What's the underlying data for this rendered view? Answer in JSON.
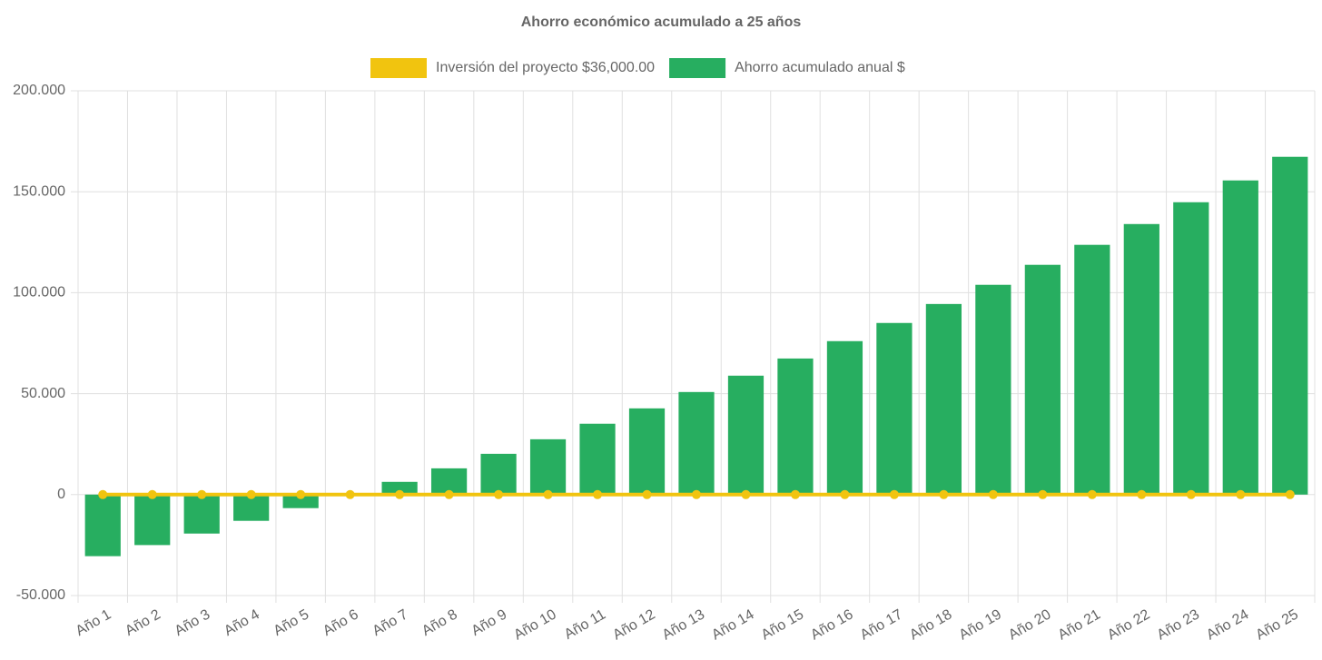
{
  "chart_data": {
    "type": "bar-line",
    "title": "Ahorro económico acumulado a 25 años",
    "categories": [
      "Año 1",
      "Año 2",
      "Año 3",
      "Año 4",
      "Año 5",
      "Año 6",
      "Año 7",
      "Año 8",
      "Año 9",
      "Año 10",
      "Año 11",
      "Año 12",
      "Año 13",
      "Año 14",
      "Año 15",
      "Año 16",
      "Año 17",
      "Año 18",
      "Año 19",
      "Año 20",
      "Año 21",
      "Año 22",
      "Año 23",
      "Año 24",
      "Año 25"
    ],
    "series": [
      {
        "name": "Inversión del proyecto $36,000.00",
        "type": "line",
        "color": "#f1c40f",
        "values": [
          0,
          0,
          0,
          0,
          0,
          0,
          0,
          0,
          0,
          0,
          0,
          0,
          0,
          0,
          0,
          0,
          0,
          0,
          0,
          0,
          0,
          0,
          0,
          0,
          0
        ]
      },
      {
        "name": "Ahorro acumulado anual $",
        "type": "bar",
        "color": "#27ae60",
        "values": [
          -30500,
          -25000,
          -19300,
          -13000,
          -6700,
          0,
          6300,
          13000,
          20200,
          27400,
          35100,
          42700,
          50800,
          58900,
          67400,
          76000,
          85000,
          94400,
          103900,
          113800,
          123700,
          134000,
          144800,
          155600,
          167300
        ]
      }
    ],
    "ylim": [
      -50000,
      200000
    ],
    "yticks": [
      {
        "value": -50000,
        "label": "-50.000"
      },
      0,
      {
        "value": 50000,
        "label": "50.000"
      },
      {
        "value": 100000,
        "label": "100.000"
      },
      {
        "value": 150000,
        "label": "150.000"
      },
      {
        "value": 200000,
        "label": "200.000"
      }
    ],
    "grid": true
  }
}
